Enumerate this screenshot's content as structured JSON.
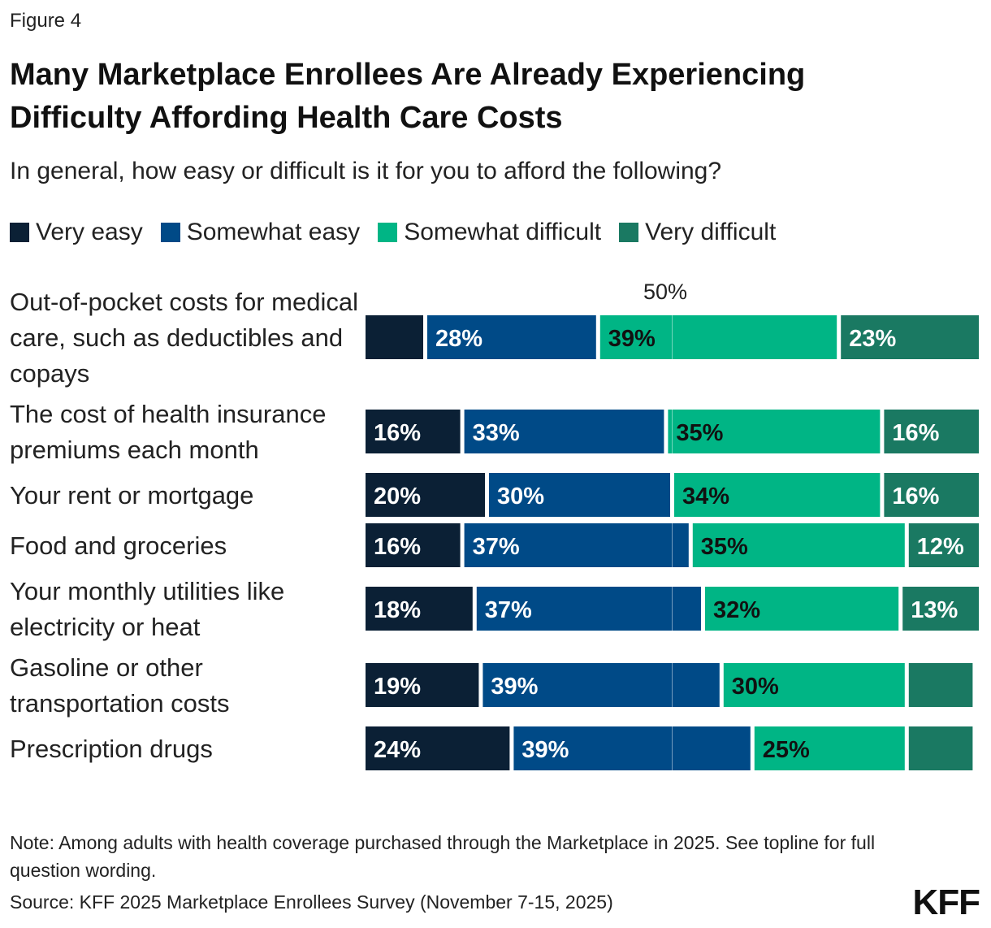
{
  "figure_label": "Figure 4",
  "chart_data": {
    "type": "bar",
    "orientation": "horizontal",
    "stacked": true,
    "title": "Many Marketplace Enrollees Are Already Experiencing Difficulty Affording Health Care Costs",
    "subtitle": "In general, how easy or difficult is it for you to afford the following?",
    "midpoint_label": "50%",
    "legend_placement": "top-left",
    "grid": false,
    "categories": [
      "Out-of-pocket costs for medical care, such as deductibles and copays",
      "The cost of health insurance premiums each month",
      "Your rent or mortgage",
      "Food and groceries",
      "Your monthly utilities like electricity or heat",
      "Gasoline or other transportation costs",
      "Prescription drugs"
    ],
    "series": [
      {
        "name": "Very easy",
        "color": "#0b2035",
        "values": [
          10,
          16,
          20,
          16,
          18,
          19,
          24
        ],
        "labels": [
          "",
          "16%",
          "20%",
          "16%",
          "18%",
          "19%",
          "24%"
        ]
      },
      {
        "name": "Somewhat easy",
        "color": "#004a87",
        "values": [
          28,
          33,
          30,
          37,
          37,
          39,
          39
        ],
        "labels": [
          "28%",
          "33%",
          "30%",
          "37%",
          "37%",
          "39%",
          "39%"
        ]
      },
      {
        "name": "Somewhat difficult",
        "color": "#00b585",
        "values": [
          39,
          35,
          34,
          35,
          32,
          30,
          25
        ],
        "labels": [
          "39%",
          "35%",
          "34%",
          "35%",
          "32%",
          "30%",
          "25%"
        ]
      },
      {
        "name": "Very difficult",
        "color": "#1a7962",
        "values": [
          23,
          16,
          16,
          12,
          13,
          11,
          11
        ],
        "labels": [
          "23%",
          "16%",
          "16%",
          "12%",
          "13%",
          "",
          ""
        ]
      }
    ]
  },
  "note": "Note: Among adults with health coverage purchased through the Marketplace in 2025. See topline for full question wording.",
  "source": "Source: KFF 2025 Marketplace Enrollees Survey (November 7-15, 2025)",
  "logo_text": "KFF"
}
